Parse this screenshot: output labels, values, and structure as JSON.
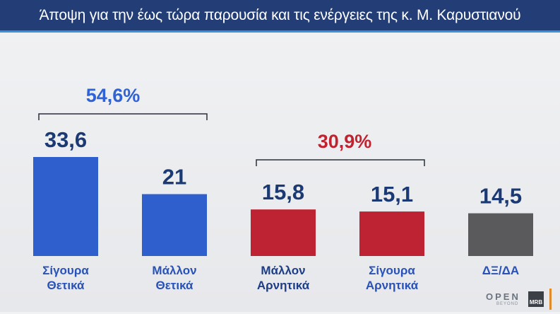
{
  "header": {
    "title": "Άποψη για την έως τώρα παρουσία και τις ενέργειες της κ. Μ. Καρυστιανού"
  },
  "chart_data": {
    "type": "bar",
    "title": "Άποψη για την έως τώρα παρουσία και τις ενέργειες της κ. Μ. Καρυστιανού",
    "categories": [
      [
        "Σίγουρα",
        "Θετικά"
      ],
      [
        "Μάλλον",
        "Θετικά"
      ],
      [
        "Μάλλον",
        "Αρνητικά"
      ],
      [
        "Σίγουρα",
        "Αρνητικά"
      ],
      [
        "ΔΞ/ΔΑ"
      ]
    ],
    "values": [
      33.6,
      21,
      15.8,
      15.1,
      14.5
    ],
    "value_labels": [
      "33,6",
      "21",
      "15,8",
      "15,1",
      "14,5"
    ],
    "bar_colors": [
      "#2f5fcc",
      "#2f5fcc",
      "#be2333",
      "#be2333",
      "#5a5a5c"
    ],
    "label_colors": [
      "#2852b8",
      "#2852b8",
      "#1d3e86",
      "#2852b8",
      "#2852b8"
    ],
    "value_color": "#1b3a74",
    "groups": [
      {
        "label": "54,6%",
        "value": 54.6,
        "from": 0,
        "to": 1,
        "color": "#2e62d6"
      },
      {
        "label": "30,9%",
        "value": 30.9,
        "from": 2,
        "to": 3,
        "color": "#c0232f"
      }
    ],
    "ylim": [
      0,
      35
    ],
    "grid": false,
    "legend": "none"
  },
  "branding": {
    "open_logo": "OPEN",
    "open_tagline": "BEYOND",
    "mrb_logo": "MRB"
  }
}
